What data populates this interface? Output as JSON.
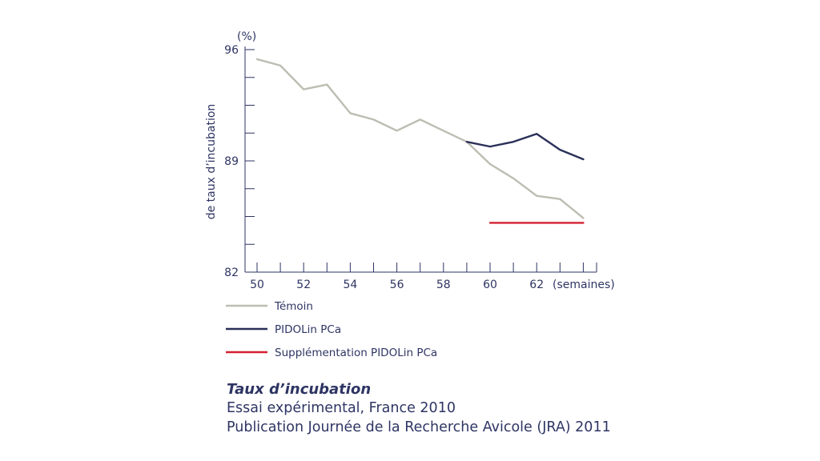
{
  "chart_data": {
    "type": "line",
    "ylabel": "de taux d’incubation",
    "y_unit": "(%)",
    "x_unit": "(semaines)",
    "x_ticks": [
      "50",
      "52",
      "54",
      "56",
      "58",
      "60",
      "62"
    ],
    "y_ticks": [
      "96",
      "89",
      "82"
    ],
    "xlim": [
      50,
      64.5
    ],
    "ylim": [
      82,
      96
    ],
    "series": [
      {
        "name": "Témoin",
        "color": "#bdbdb3",
        "x": [
          50,
          51,
          52,
          53,
          54,
          55,
          56,
          57,
          58,
          59,
          60,
          61,
          62,
          63,
          64
        ],
        "y": [
          95.4,
          95.0,
          93.5,
          93.8,
          92.0,
          91.6,
          90.9,
          91.6,
          90.9,
          90.2,
          88.8,
          87.9,
          86.8,
          86.6,
          85.4
        ]
      },
      {
        "name": "PIDOLin PCa",
        "color": "#2a3058",
        "x": [
          59,
          60,
          61,
          62,
          63,
          64
        ],
        "y": [
          90.2,
          89.9,
          90.2,
          90.7,
          89.7,
          89.1
        ]
      },
      {
        "name": "Supplémentation PIDOLin PCa",
        "color": "#d42030",
        "x": [
          60,
          64
        ],
        "y": [
          85.1,
          85.1
        ]
      }
    ]
  },
  "caption": {
    "title": "Taux d’incubation",
    "line1": "Essai expérimental, France 2010",
    "line2": "Publication Journée de la Recherche Avicole (JRA) 2011"
  }
}
